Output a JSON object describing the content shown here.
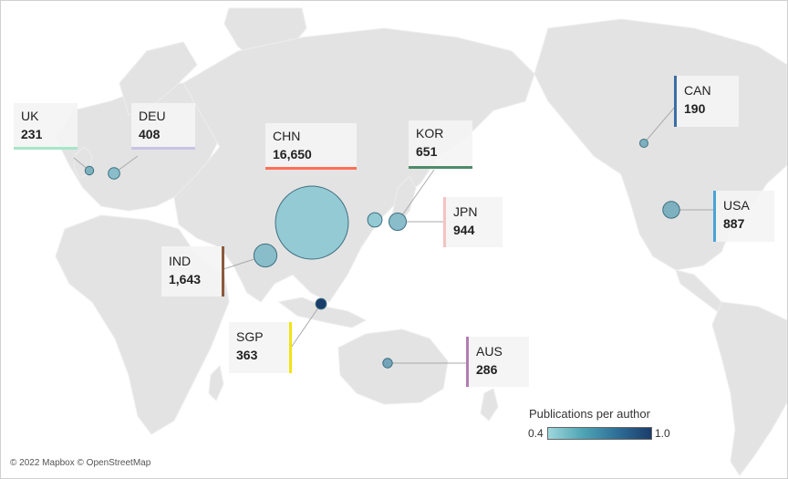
{
  "legend": {
    "title": "Publications per author",
    "min_label": "0.4",
    "max_label": "1.0"
  },
  "credit": "© 2022 Mapbox © OpenStreetMap",
  "countries": [
    {
      "code": "UK",
      "value": "231",
      "count": 231,
      "rate": 0.55,
      "color": "#a6e6c8"
    },
    {
      "code": "DEU",
      "value": "408",
      "count": 408,
      "rate": 0.5,
      "color": "#c7c3e3"
    },
    {
      "code": "CHN",
      "value": "16,650",
      "count": 16650,
      "rate": 0.45,
      "color": "#ff6f55"
    },
    {
      "code": "KOR",
      "value": "651",
      "count": 651,
      "rate": 0.45,
      "color": "#4f8a6a"
    },
    {
      "code": "JPN",
      "value": "944",
      "count": 944,
      "rate": 0.5,
      "color": "#f4c2c2"
    },
    {
      "code": "IND",
      "value": "1,643",
      "count": 1643,
      "rate": 0.5,
      "color": "#8b5a3c"
    },
    {
      "code": "SGP",
      "value": "363",
      "count": 363,
      "rate": 1.0,
      "color": "#f2e313"
    },
    {
      "code": "AUS",
      "value": "286",
      "count": 286,
      "rate": 0.6,
      "color": "#b47cb2"
    },
    {
      "code": "CAN",
      "value": "190",
      "count": 190,
      "rate": 0.55,
      "color": "#3a6ea5"
    },
    {
      "code": "USA",
      "value": "887",
      "count": 887,
      "rate": 0.55,
      "color": "#4aa3d9"
    }
  ]
}
